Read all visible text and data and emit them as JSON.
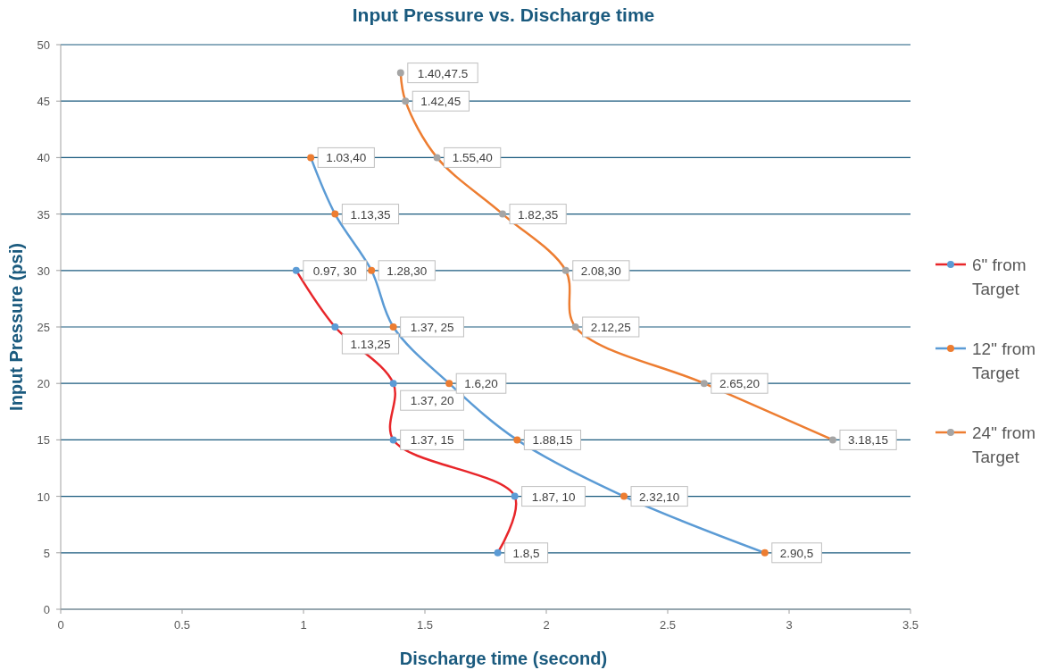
{
  "chart_data": {
    "type": "line",
    "title": "Input Pressure vs. Discharge time",
    "xlabel": "Discharge time (second)",
    "ylabel": "Input Pressure (psi)",
    "xlim": [
      0,
      3.5
    ],
    "xticks": [
      0,
      0.5,
      1,
      1.5,
      2,
      2.5,
      3,
      3.5
    ],
    "ylim": [
      0,
      50
    ],
    "yticks": [
      0,
      5,
      10,
      15,
      20,
      25,
      30,
      35,
      40,
      45,
      50
    ],
    "grid": "y",
    "legend": "right",
    "marker": "circle",
    "series": [
      {
        "name": "6\" from Target",
        "color": "#e8262a",
        "colors": [
          "#5b9bd5",
          "#5b9bd5",
          "#5b9bd5",
          "#5b9bd5",
          "#5b9bd5",
          "#5b9bd5"
        ],
        "x": [
          0.97,
          1.13,
          1.37,
          1.37,
          1.87,
          1.8
        ],
        "values": [
          30,
          25,
          20,
          15,
          10,
          5
        ],
        "value_labels": [
          "0.97, 30",
          "1.13,25",
          "1.37, 20",
          "1.37, 15",
          "1.87, 10",
          "1.8,5"
        ]
      },
      {
        "name": "12\" from Target",
        "color": "#5b9bd5",
        "colors": [
          "#ed7d31",
          "#ed7d31",
          "#ed7d31",
          "#ed7d31",
          "#ed7d31",
          "#ed7d31",
          "#ed7d31",
          "#ed7d31"
        ],
        "x": [
          1.03,
          1.13,
          1.28,
          1.37,
          1.6,
          1.88,
          2.32,
          2.9
        ],
        "values": [
          40,
          35,
          30,
          25,
          20,
          15,
          10,
          5
        ],
        "value_labels": [
          "1.03,40",
          "1.13,35",
          "1.28,30",
          "1.37, 25",
          "1.6,20",
          "1.88,15",
          "2.32,10",
          "2.90,5"
        ]
      },
      {
        "name": "24\" from Target",
        "color": "#ed7d31",
        "colors": [
          "#a5a5a5",
          "#a5a5a5",
          "#a5a5a5",
          "#a5a5a5",
          "#a5a5a5",
          "#a5a5a5",
          "#a5a5a5",
          "#a5a5a5"
        ],
        "x": [
          1.4,
          1.42,
          1.55,
          1.82,
          2.08,
          2.12,
          2.65,
          3.18
        ],
        "values": [
          47.5,
          45,
          40,
          35,
          30,
          25,
          20,
          15
        ],
        "value_labels": [
          "1.40,47.5",
          "1.42,45",
          "1.55,40",
          "1.82,35",
          "2.08,30",
          "2.12,25",
          "2.65,20",
          "3.18,15"
        ]
      }
    ]
  }
}
